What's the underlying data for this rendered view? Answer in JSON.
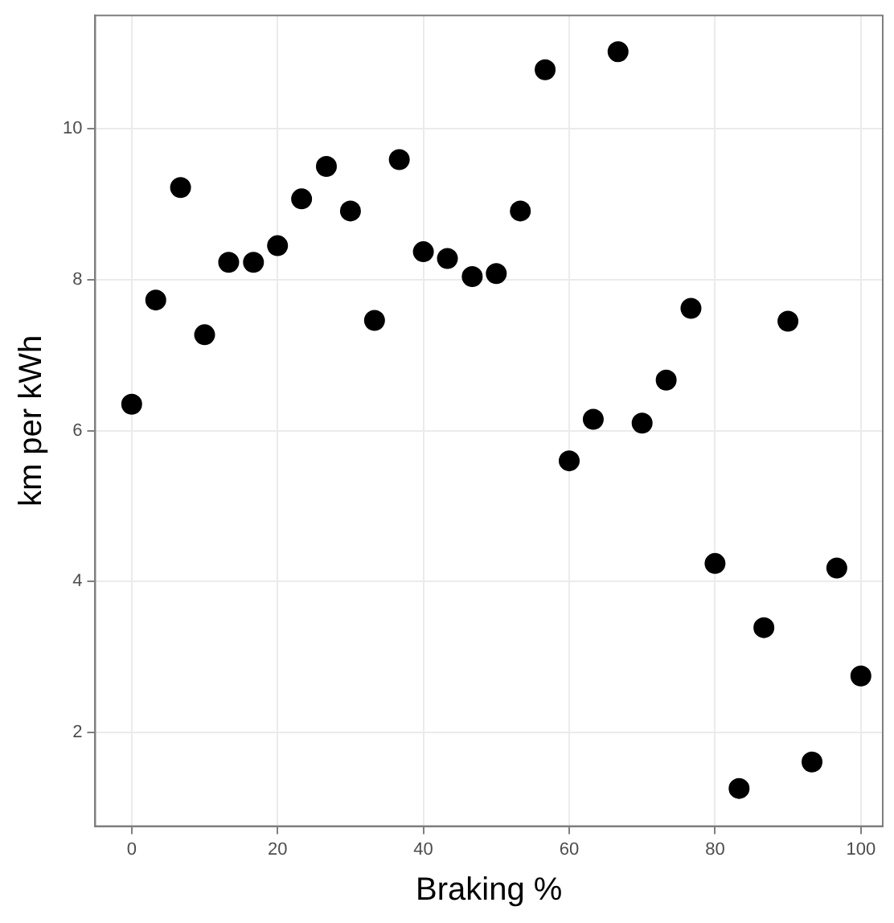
{
  "chart_data": {
    "type": "scatter",
    "xlabel": "Braking %",
    "ylabel": "km per kWh",
    "x": [
      0,
      3.3,
      6.7,
      10,
      13.3,
      16.7,
      20,
      23.3,
      26.7,
      30,
      33.3,
      36.7,
      40,
      43.3,
      46.7,
      50,
      53.3,
      56.7,
      60,
      63.3,
      66.7,
      70,
      73.3,
      76.7,
      80,
      83.3,
      86.7,
      90,
      93.3,
      96.7,
      100
    ],
    "series": [
      {
        "color": "#000000",
        "values": [
          6.35,
          7.73,
          9.22,
          7.27,
          8.23,
          8.23,
          8.45,
          9.07,
          9.5,
          8.91,
          7.46,
          9.59,
          8.37,
          8.28,
          8.04,
          8.08,
          8.91,
          10.78,
          5.6,
          6.15,
          11.02,
          6.1,
          6.67,
          7.62,
          4.24,
          1.26,
          3.39,
          7.45,
          1.61,
          4.18,
          2.75
        ]
      }
    ],
    "xlim": [
      -5,
      103
    ],
    "ylim": [
      0.76,
      11.5
    ],
    "xticks": [
      0,
      20,
      40,
      60,
      80,
      100
    ],
    "yticks": [
      2,
      4,
      6,
      8,
      10
    ],
    "grid": true,
    "marker": "circle",
    "legend": false
  }
}
